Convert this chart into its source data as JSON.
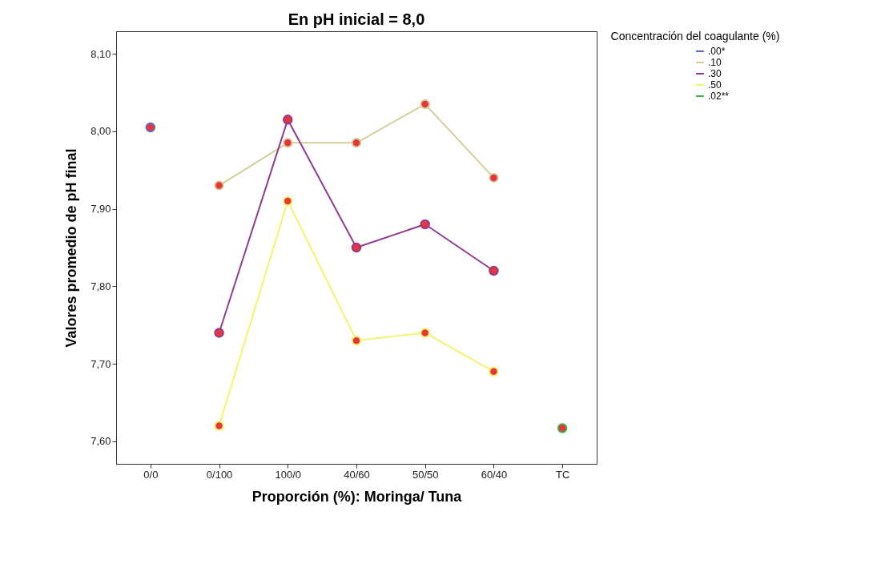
{
  "chart_data": {
    "type": "line",
    "title": "En pH inicial = 8,0",
    "xlabel": "Proporción (%): Moringa/ Tuna",
    "ylabel": "Valores promedio de pH final",
    "legend_title": "Concentración del coagulante (%)",
    "categories": [
      "0/0",
      "0/100",
      "100/0",
      "40/60",
      "50/50",
      "60/40",
      "TC"
    ],
    "series": [
      {
        "name": ".00*",
        "color": "#5b6fc4",
        "values": [
          8.005,
          null,
          null,
          null,
          null,
          null,
          null
        ]
      },
      {
        "name": ".10",
        "color": "#d4cf9c",
        "values": [
          null,
          7.93,
          7.985,
          7.985,
          8.035,
          7.94,
          null
        ]
      },
      {
        "name": ".30",
        "color": "#8e3b91",
        "values": [
          null,
          7.74,
          8.015,
          7.85,
          7.88,
          7.82,
          null
        ]
      },
      {
        "name": ".50",
        "color": "#f5f36a",
        "values": [
          null,
          7.62,
          7.91,
          7.73,
          7.74,
          7.69,
          null
        ]
      },
      {
        "name": ".02**",
        "color": "#3db54a",
        "values": [
          null,
          null,
          null,
          null,
          null,
          null,
          7.617
        ]
      }
    ],
    "ylim": [
      7.571,
      8.129
    ],
    "yticks": [
      {
        "value": 7.6,
        "label": "7,60"
      },
      {
        "value": 7.7,
        "label": "7,70"
      },
      {
        "value": 7.8,
        "label": "7,80"
      },
      {
        "value": 7.9,
        "label": "7,90"
      },
      {
        "value": 8.0,
        "label": "8,00"
      },
      {
        "value": 8.1,
        "label": "8,10"
      }
    ],
    "legend": "top right",
    "grid": false,
    "marker": "circle",
    "line_style": "solid"
  }
}
